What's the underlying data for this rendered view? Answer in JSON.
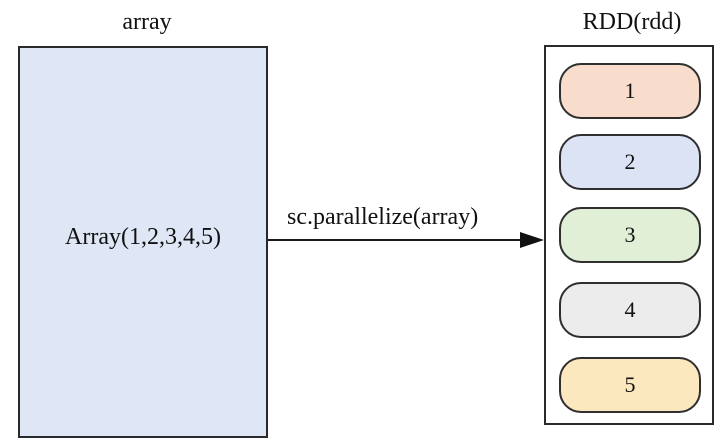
{
  "titles": {
    "array": "array",
    "rdd": "RDD(rdd)"
  },
  "array": {
    "value": "Array(1,2,3,4,5)",
    "fill": "#dfe6f5"
  },
  "operation": {
    "label": "sc.parallelize(array)"
  },
  "partitions": [
    {
      "label": "1",
      "fill": "#f8dccc"
    },
    {
      "label": "2",
      "fill": "#dce3f5"
    },
    {
      "label": "3",
      "fill": "#e1efd7"
    },
    {
      "label": "4",
      "fill": "#ececec"
    },
    {
      "label": "5",
      "fill": "#fce8bf"
    }
  ],
  "colors": {
    "stroke": "#2a2a2a",
    "text": "#111111",
    "background": "#ffffff"
  }
}
